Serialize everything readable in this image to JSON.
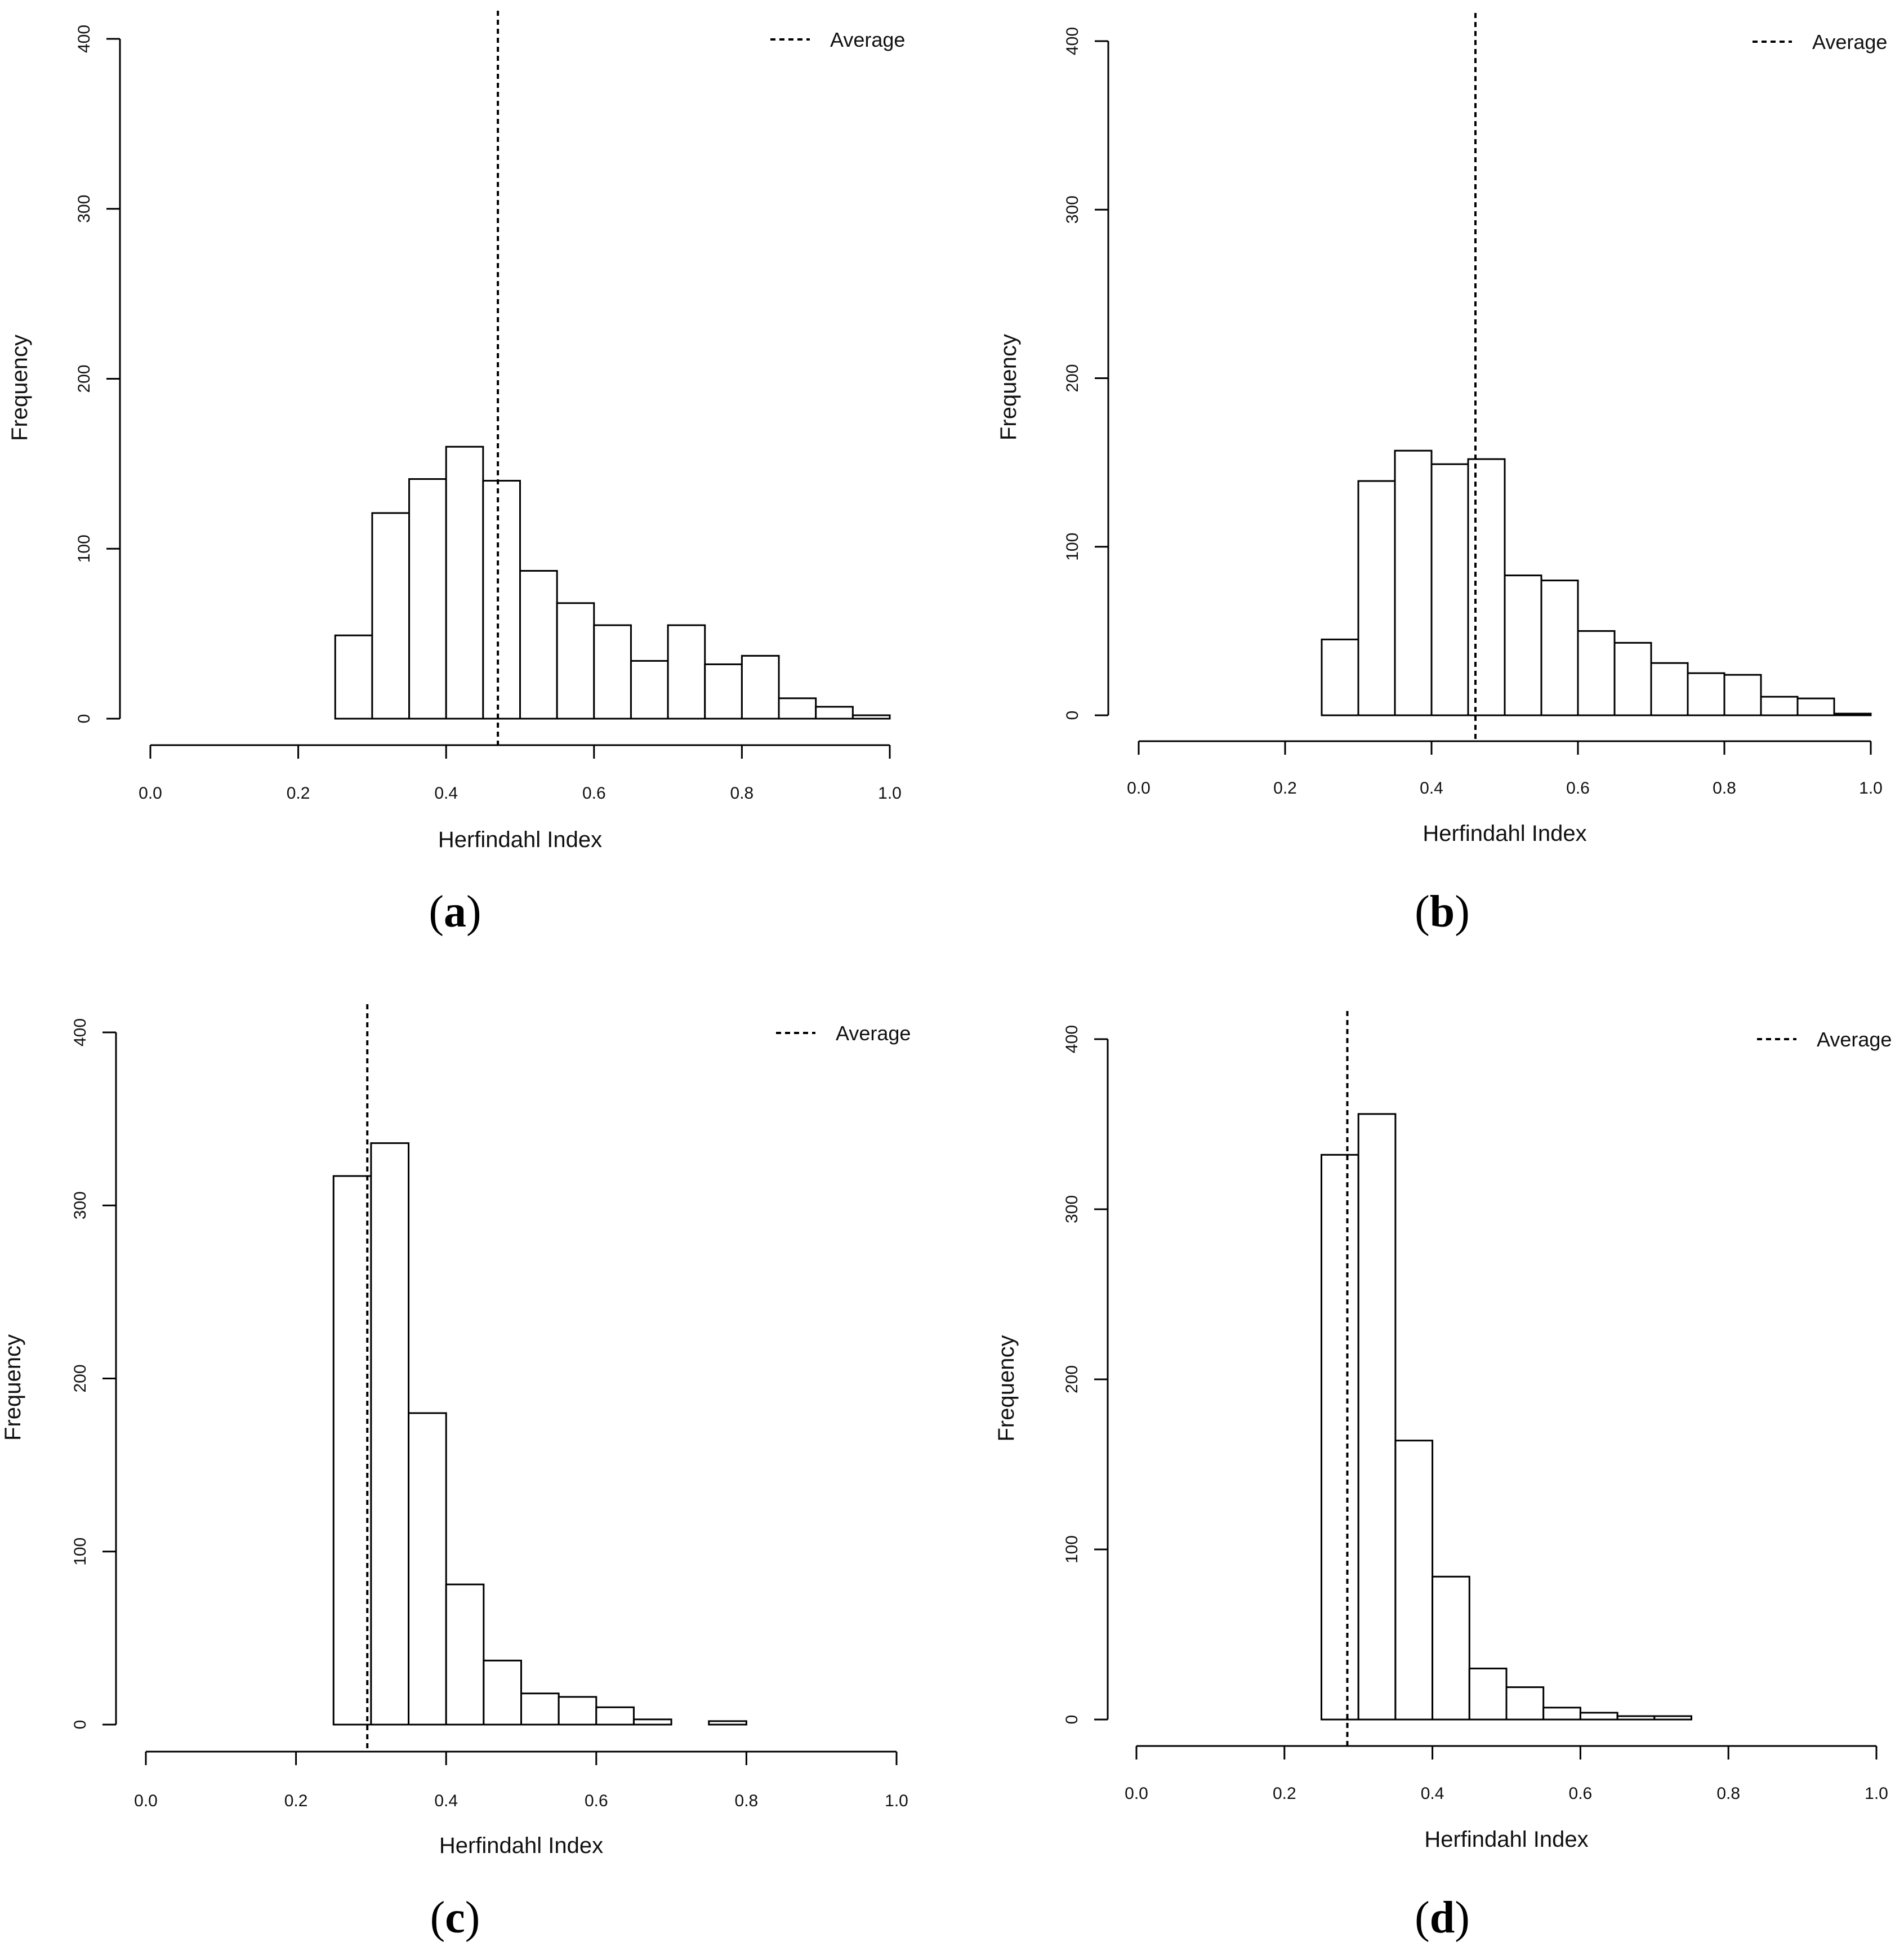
{
  "figure": {
    "panel_count": 4,
    "colors": {
      "bar_fill": "#ffffff",
      "bar_stroke": "#000000",
      "axis": "#000000",
      "average_line": "#000000"
    }
  },
  "chart_data": [
    {
      "panel": "a",
      "label_open": "(",
      "label_letter": "a",
      "label_close": ")",
      "type": "bar",
      "xlabel": "Herfindahl Index",
      "ylabel": "Frequency",
      "xlim": [
        0,
        1
      ],
      "ylim": [
        0,
        400
      ],
      "bin_width": 0.05,
      "bin_starts": [
        0.0,
        0.05,
        0.1,
        0.15,
        0.2,
        0.25,
        0.3,
        0.35,
        0.4,
        0.45,
        0.5,
        0.55,
        0.6,
        0.65,
        0.7,
        0.75,
        0.8,
        0.85,
        0.9,
        0.95
      ],
      "values": [
        0,
        0,
        0,
        0,
        0,
        49,
        121,
        141,
        160,
        140,
        87,
        68,
        55,
        34,
        55,
        32,
        37,
        12,
        7,
        2
      ],
      "x_ticks": [
        "0.0",
        "0.2",
        "0.4",
        "0.6",
        "0.8",
        "1.0"
      ],
      "y_ticks": [
        "0",
        "100",
        "200",
        "300",
        "400"
      ],
      "average": 0.47,
      "legend": "Average",
      "legend_position": "top-right"
    },
    {
      "panel": "b",
      "label_open": "(",
      "label_letter": "b",
      "label_close": ")",
      "type": "bar",
      "xlabel": "Herfindahl Index",
      "ylabel": "Frequency",
      "xlim": [
        0,
        1
      ],
      "ylim": [
        0,
        400
      ],
      "bin_width": 0.05,
      "bin_starts": [
        0.0,
        0.05,
        0.1,
        0.15,
        0.2,
        0.25,
        0.3,
        0.35,
        0.4,
        0.45,
        0.5,
        0.55,
        0.6,
        0.65,
        0.7,
        0.75,
        0.8,
        0.85,
        0.9,
        0.95
      ],
      "values": [
        0,
        0,
        0,
        0,
        0,
        45,
        139,
        157,
        149,
        152,
        83,
        80,
        50,
        43,
        31,
        25,
        24,
        11,
        10,
        1
      ],
      "x_ticks": [
        "0.0",
        "0.2",
        "0.4",
        "0.6",
        "0.8",
        "1.0"
      ],
      "y_ticks": [
        "0",
        "100",
        "200",
        "300",
        "400"
      ],
      "average": 0.46,
      "legend": "Average",
      "legend_position": "top-right"
    },
    {
      "panel": "c",
      "label_open": "(",
      "label_letter": "c",
      "label_close": ")",
      "type": "bar",
      "xlabel": "Herfindahl Index",
      "ylabel": "Frequency",
      "xlim": [
        0,
        1
      ],
      "ylim": [
        0,
        400
      ],
      "bin_width": 0.05,
      "bin_starts": [
        0.0,
        0.05,
        0.1,
        0.15,
        0.2,
        0.25,
        0.3,
        0.35,
        0.4,
        0.45,
        0.5,
        0.55,
        0.6,
        0.65,
        0.7,
        0.75,
        0.8,
        0.85,
        0.9,
        0.95
      ],
      "values": [
        0,
        0,
        0,
        0,
        0,
        317,
        336,
        180,
        81,
        37,
        18,
        16,
        10,
        3,
        0,
        2,
        0,
        0,
        0,
        0
      ],
      "x_ticks": [
        "0.0",
        "0.2",
        "0.4",
        "0.6",
        "0.8",
        "1.0"
      ],
      "y_ticks": [
        "0",
        "100",
        "200",
        "300",
        "400"
      ],
      "average": 0.295,
      "legend": "Average",
      "legend_position": "top-right"
    },
    {
      "panel": "d",
      "label_open": "(",
      "label_letter": "d",
      "label_close": ")",
      "type": "bar",
      "xlabel": "Herfindahl Index",
      "ylabel": "Frequency",
      "xlim": [
        0,
        1
      ],
      "ylim": [
        0,
        400
      ],
      "bin_width": 0.05,
      "bin_starts": [
        0.0,
        0.05,
        0.1,
        0.15,
        0.2,
        0.25,
        0.3,
        0.35,
        0.4,
        0.45,
        0.5,
        0.55,
        0.6,
        0.65,
        0.7,
        0.75,
        0.8,
        0.85,
        0.9,
        0.95
      ],
      "values": [
        0,
        0,
        0,
        0,
        0,
        332,
        356,
        164,
        84,
        30,
        19,
        7,
        4,
        2,
        2,
        0,
        0,
        0,
        0,
        0
      ],
      "x_ticks": [
        "0.0",
        "0.2",
        "0.4",
        "0.6",
        "0.8",
        "1.0"
      ],
      "y_ticks": [
        "0",
        "100",
        "200",
        "300",
        "400"
      ],
      "average": 0.285,
      "legend": "Average",
      "legend_position": "top-right"
    }
  ]
}
